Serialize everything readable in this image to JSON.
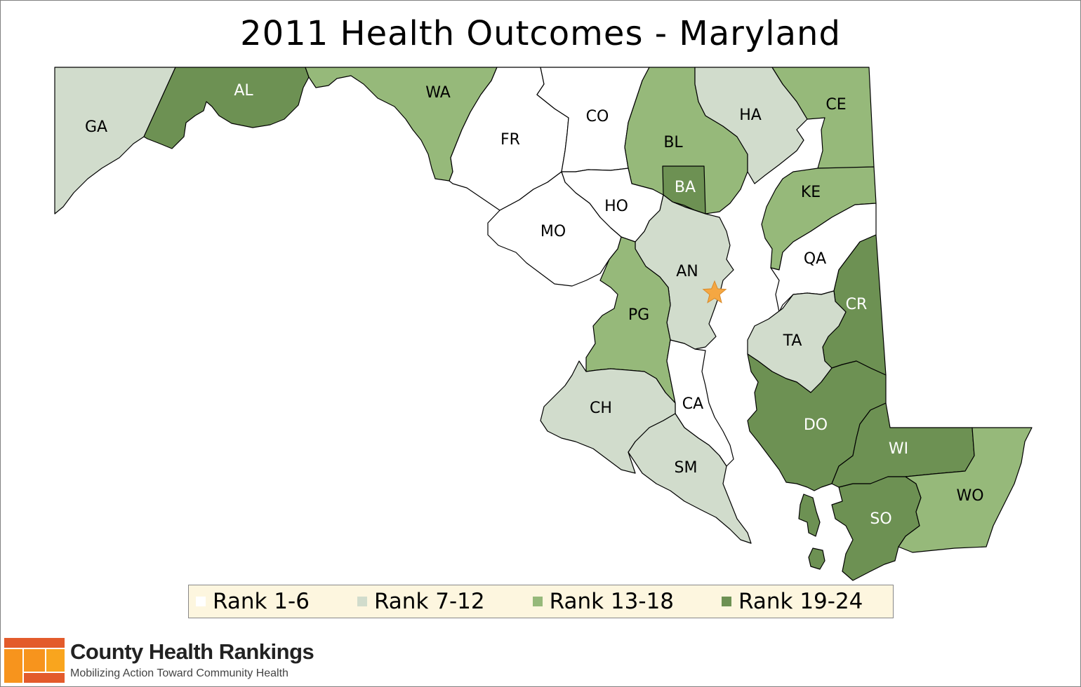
{
  "title": "2011 Health Outcomes - Maryland",
  "colors": {
    "rank_1_6": "#ffffff",
    "rank_7_12": "#d1dccc",
    "rank_13_18": "#96b97a",
    "rank_19_24": "#6d9153",
    "star": "#f5a742",
    "legend_bg": "#fdf6df",
    "logo_orange": "#f7941d",
    "logo_red": "#e35b2b"
  },
  "legend": [
    {
      "label": "Rank 1-6",
      "color": "#ffffff"
    },
    {
      "label": "Rank 7-12",
      "color": "#d1dccc"
    },
    {
      "label": "Rank 13-18",
      "color": "#96b97a"
    },
    {
      "label": "Rank 19-24",
      "color": "#6d9153"
    }
  ],
  "counties": [
    {
      "code": "GA",
      "rank_group": "Rank 7-12"
    },
    {
      "code": "AL",
      "rank_group": "Rank 19-24"
    },
    {
      "code": "WA",
      "rank_group": "Rank 13-18"
    },
    {
      "code": "FR",
      "rank_group": "Rank 1-6"
    },
    {
      "code": "CO",
      "rank_group": "Rank 1-6"
    },
    {
      "code": "BL",
      "rank_group": "Rank 13-18"
    },
    {
      "code": "HA",
      "rank_group": "Rank 7-12"
    },
    {
      "code": "CE",
      "rank_group": "Rank 13-18"
    },
    {
      "code": "BA",
      "rank_group": "Rank 19-24"
    },
    {
      "code": "KE",
      "rank_group": "Rank 13-18"
    },
    {
      "code": "HO",
      "rank_group": "Rank 1-6"
    },
    {
      "code": "MO",
      "rank_group": "Rank 1-6"
    },
    {
      "code": "AN",
      "rank_group": "Rank 7-12"
    },
    {
      "code": "QA",
      "rank_group": "Rank 1-6"
    },
    {
      "code": "PG",
      "rank_group": "Rank 13-18"
    },
    {
      "code": "CR",
      "rank_group": "Rank 19-24"
    },
    {
      "code": "TA",
      "rank_group": "Rank 7-12"
    },
    {
      "code": "CA",
      "rank_group": "Rank 1-6"
    },
    {
      "code": "CH",
      "rank_group": "Rank 7-12"
    },
    {
      "code": "DO",
      "rank_group": "Rank 19-24"
    },
    {
      "code": "WI",
      "rank_group": "Rank 19-24"
    },
    {
      "code": "SM",
      "rank_group": "Rank 7-12"
    },
    {
      "code": "SO",
      "rank_group": "Rank 19-24"
    },
    {
      "code": "WO",
      "rank_group": "Rank 13-18"
    }
  ],
  "capital_marker": "star-icon",
  "brand": {
    "name": "County Health Rankings",
    "tagline": "Mobilizing Action Toward Community Health"
  }
}
